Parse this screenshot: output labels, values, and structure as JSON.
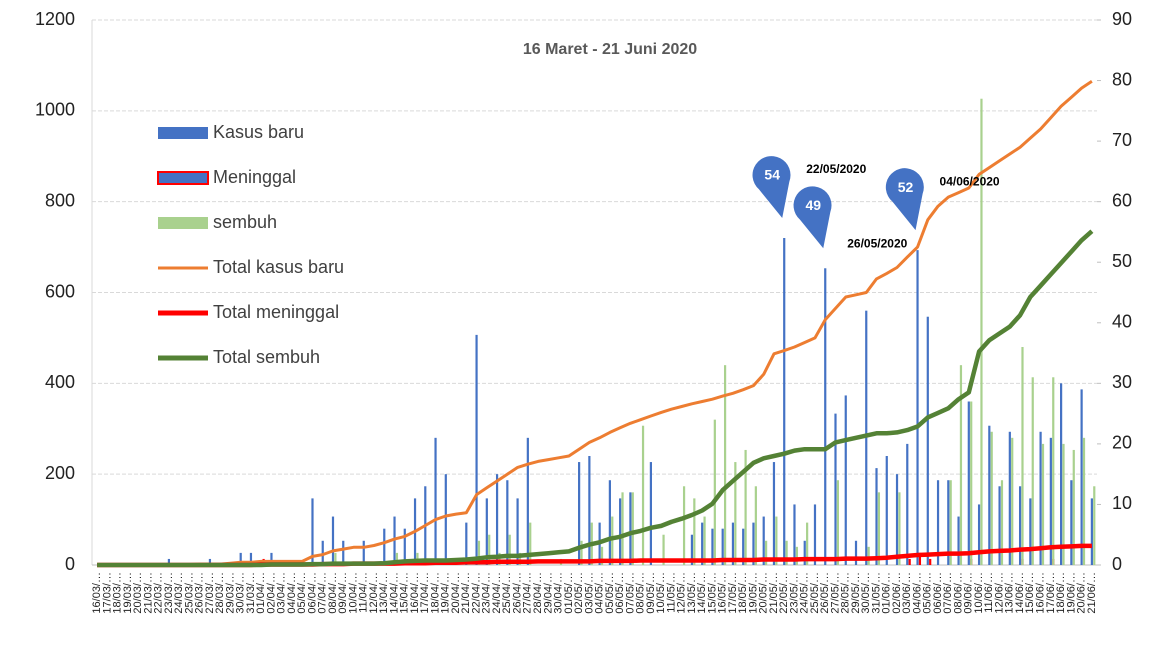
{
  "chart_data": {
    "type": "bar-line",
    "title": "16 Maret - 21 Juni 2020",
    "categories": [
      "16/03/…",
      "17/03/…",
      "18/03/…",
      "19/03/…",
      "20/03/…",
      "21/03/…",
      "22/03/…",
      "23/03/…",
      "24/03/…",
      "25/03/…",
      "26/03/…",
      "27/03/…",
      "28/03/…",
      "29/03/…",
      "30/03/…",
      "31/03/…",
      "01/04/…",
      "02/04/…",
      "03/04/…",
      "04/04/…",
      "05/04/…",
      "06/04/…",
      "07/04/…",
      "08/04/…",
      "09/04/…",
      "10/04/…",
      "11/04/…",
      "12/04/…",
      "13/04/…",
      "14/04/…",
      "15/04/…",
      "16/04/…",
      "17/04/…",
      "18/04/…",
      "19/04/…",
      "20/04/…",
      "21/04/…",
      "22/04/…",
      "23/04/…",
      "24/04/…",
      "25/04/…",
      "26/04/…",
      "27/04/…",
      "28/04/…",
      "29/04/…",
      "30/04/…",
      "01/05/…",
      "02/05/…",
      "03/05/…",
      "04/05/…",
      "05/05/…",
      "06/05/…",
      "07/05/…",
      "08/05/…",
      "09/05/…",
      "10/05/…",
      "11/05/…",
      "12/05/…",
      "13/05/…",
      "14/05/…",
      "15/05/…",
      "16/05/…",
      "17/05/…",
      "18/05/…",
      "19/05/…",
      "20/05/…",
      "21/05/…",
      "22/05/…",
      "23/05/…",
      "24/05/…",
      "25/05/…",
      "26/05/…",
      "27/05/…",
      "28/05/…",
      "29/05/…",
      "30/05/…",
      "31/05/…",
      "01/06/…",
      "02/06/…",
      "03/06/…",
      "04/06/…",
      "05/06/…",
      "06/06/…",
      "07/06/…",
      "08/06/…",
      "09/06/…",
      "10/06/…",
      "11/06/…",
      "12/06/…",
      "13/06/…",
      "14/06/…",
      "15/06/…",
      "16/06/…",
      "17/06/…",
      "18/06/…",
      "19/06/…",
      "20/06/…",
      "21/06/…"
    ],
    "series": [
      {
        "name": "Kasus baru",
        "kind": "bar",
        "axis": "y2",
        "color": "#4472c4",
        "values": [
          0,
          0,
          0,
          0,
          0,
          0,
          0,
          1,
          0,
          0,
          0,
          1,
          0,
          0,
          2,
          2,
          0,
          2,
          0,
          0,
          0,
          11,
          4,
          8,
          4,
          0,
          4,
          0,
          6,
          8,
          6,
          11,
          13,
          21,
          15,
          0,
          7,
          38,
          11,
          15,
          14,
          11,
          21,
          0,
          0,
          0,
          0,
          17,
          18,
          7,
          14,
          11,
          12,
          0,
          17,
          0,
          0,
          0,
          5,
          7,
          6,
          6,
          7,
          6,
          7,
          8,
          17,
          54,
          10,
          4,
          10,
          49,
          25,
          28,
          4,
          42,
          16,
          18,
          15,
          20,
          52,
          41,
          14,
          14,
          8,
          27,
          10,
          23,
          13,
          22,
          13,
          11,
          22,
          21,
          30,
          14,
          29,
          11
        ]
      },
      {
        "name": "Meninggal",
        "kind": "bar",
        "axis": "y2",
        "color": "#ff0000",
        "values": [
          0,
          0,
          0,
          0,
          0,
          0,
          0,
          0,
          0,
          0,
          0,
          0,
          0,
          0,
          0,
          0,
          1,
          0,
          0,
          0,
          0,
          0,
          0,
          0,
          0,
          0,
          0,
          0,
          0,
          0,
          0,
          0,
          0,
          0,
          0,
          0,
          0,
          0,
          0,
          0,
          0,
          0,
          0,
          0,
          0,
          0,
          0,
          0,
          0,
          0,
          0,
          0,
          0,
          0,
          0,
          0,
          0,
          0,
          0,
          0,
          0,
          0,
          0,
          0,
          0,
          0,
          0,
          0,
          0,
          0,
          0,
          0,
          0,
          0,
          0,
          0,
          0,
          0,
          0,
          1,
          2,
          1,
          0,
          0,
          0,
          1,
          0,
          0,
          0,
          0,
          1,
          0,
          0,
          1,
          0,
          0,
          0,
          0
        ]
      },
      {
        "name": "sembuh",
        "kind": "bar",
        "axis": "y2",
        "color": "#a9d18e",
        "values": [
          0,
          0,
          0,
          0,
          0,
          0,
          0,
          0,
          0,
          0,
          0,
          0,
          0,
          0,
          0,
          0,
          0,
          0,
          0,
          0,
          0,
          0,
          0,
          2,
          0,
          0,
          0,
          0,
          0,
          2,
          0,
          2,
          0,
          0,
          1,
          0,
          1,
          4,
          5,
          2,
          5,
          2,
          7,
          0,
          0,
          1,
          0,
          4,
          7,
          3,
          8,
          12,
          12,
          23,
          0,
          5,
          0,
          13,
          11,
          8,
          24,
          33,
          17,
          19,
          13,
          4,
          8,
          4,
          3,
          7,
          0,
          0,
          14,
          0,
          0,
          3,
          12,
          0,
          12,
          0,
          0,
          0,
          0,
          14,
          33,
          27,
          77,
          22,
          14,
          21,
          36,
          31,
          20,
          31,
          20,
          19,
          21,
          13
        ]
      },
      {
        "name": "Total kasus baru",
        "kind": "line",
        "axis": "y",
        "color": "#ed7d31",
        "values": [
          0,
          0,
          0,
          0,
          0,
          0,
          0,
          1,
          1,
          1,
          2,
          2,
          2,
          4,
          6,
          6,
          8,
          8,
          8,
          8,
          8,
          19,
          23,
          31,
          35,
          39,
          39,
          43,
          49,
          57,
          63,
          74,
          87,
          100,
          108,
          112,
          115,
          155,
          170,
          185,
          200,
          215,
          222,
          228,
          232,
          236,
          240,
          255,
          270,
          280,
          292,
          302,
          312,
          320,
          328,
          336,
          343,
          349,
          355,
          360,
          365,
          372,
          378,
          386,
          395,
          420,
          465,
          472,
          480,
          490,
          500,
          540,
          565,
          590,
          595,
          600,
          630,
          642,
          655,
          678,
          700,
          760,
          790,
          810,
          820,
          830,
          860,
          875,
          890,
          905,
          920,
          940,
          960,
          985,
          1010,
          1030,
          1050,
          1065
        ]
      },
      {
        "name": "Total meninggal",
        "kind": "line",
        "axis": "y",
        "color": "#ff0000",
        "values": [
          0,
          0,
          0,
          0,
          0,
          0,
          0,
          0,
          0,
          0,
          0,
          0,
          0,
          0,
          0,
          0,
          1,
          1,
          1,
          1,
          1,
          1,
          2,
          2,
          2,
          3,
          3,
          3,
          3,
          3,
          4,
          4,
          4,
          5,
          5,
          5,
          6,
          6,
          6,
          7,
          7,
          7,
          7,
          8,
          8,
          8,
          8,
          8,
          8,
          9,
          9,
          9,
          9,
          10,
          10,
          10,
          10,
          10,
          10,
          10,
          10,
          11,
          11,
          11,
          11,
          12,
          12,
          12,
          12,
          13,
          13,
          13,
          13,
          14,
          14,
          14,
          15,
          16,
          18,
          20,
          22,
          23,
          24,
          25,
          25,
          26,
          28,
          30,
          31,
          32,
          34,
          35,
          37,
          39,
          40,
          41,
          42,
          42
        ]
      },
      {
        "name": "Total sembuh",
        "kind": "line",
        "axis": "y",
        "color": "#548235",
        "values": [
          0,
          0,
          0,
          0,
          0,
          0,
          0,
          0,
          0,
          0,
          0,
          0,
          0,
          0,
          0,
          0,
          0,
          1,
          1,
          1,
          1,
          2,
          2,
          3,
          3,
          3,
          3,
          3,
          4,
          6,
          8,
          9,
          10,
          10,
          10,
          11,
          12,
          14,
          17,
          18,
          20,
          20,
          22,
          24,
          26,
          28,
          30,
          38,
          45,
          50,
          58,
          62,
          70,
          75,
          82,
          86,
          95,
          102,
          110,
          120,
          135,
          165,
          185,
          205,
          225,
          235,
          240,
          245,
          252,
          255,
          255,
          255,
          270,
          275,
          280,
          285,
          290,
          290,
          292,
          297,
          305,
          325,
          335,
          345,
          365,
          380,
          470,
          495,
          510,
          525,
          550,
          590,
          615,
          640,
          665,
          690,
          715,
          735
        ]
      }
    ],
    "annotations": [
      {
        "text": "54",
        "date": "22/05/2020"
      },
      {
        "text": "49",
        "date": "26/05/2020"
      },
      {
        "text": "52",
        "date": "04/06/2020"
      }
    ],
    "ylim": [
      0,
      1200
    ],
    "yticks": [
      0,
      200,
      400,
      600,
      800,
      1000,
      1200
    ],
    "y2lim": [
      0,
      90
    ],
    "y2ticks": [
      0,
      10,
      20,
      30,
      40,
      50,
      60,
      70,
      80,
      90
    ],
    "grid": true,
    "legend": "left"
  }
}
